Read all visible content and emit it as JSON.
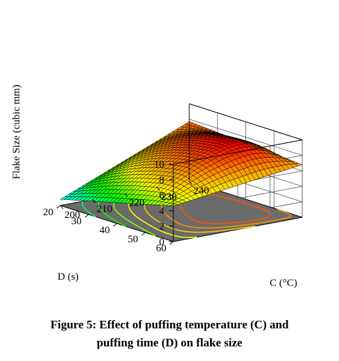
{
  "chart_data": {
    "type": "surface",
    "zlabel": "Flake Size (cubic mm)",
    "xlabel": "C (°C)",
    "ylabel": "D (s)",
    "x_axis": {
      "ticks": [
        "200",
        "210",
        "220",
        "230",
        "240"
      ],
      "range": [
        200,
        240
      ]
    },
    "y_axis": {
      "ticks": [
        "20",
        "30",
        "40",
        "50",
        "60"
      ],
      "range": [
        20,
        60
      ]
    },
    "z_axis": {
      "ticks": [
        "0",
        "2",
        "4",
        "6",
        "8",
        "10"
      ],
      "range": [
        0,
        10
      ]
    },
    "surface_corners": [
      {
        "C": 200,
        "D": 20,
        "flake_size": 0.8
      },
      {
        "C": 200,
        "D": 60,
        "flake_size": 4.6
      },
      {
        "C": 240,
        "D": 20,
        "flake_size": 7.7
      },
      {
        "C": 240,
        "D": 60,
        "flake_size": 6.8
      }
    ],
    "peak": {
      "C": 226,
      "D": 48,
      "flake_size": 9.2
    },
    "colormap": [
      "#00ffff",
      "#00ff00",
      "#ffff00",
      "#ff8800",
      "#ff0000"
    ],
    "floor_color": "#6b6b6b",
    "contours": "projected on floor",
    "grid": true
  },
  "caption": {
    "line1": "Figure 5: Effect of puffing temperature (C) and",
    "line2": "puffing time (D) on flake size"
  }
}
